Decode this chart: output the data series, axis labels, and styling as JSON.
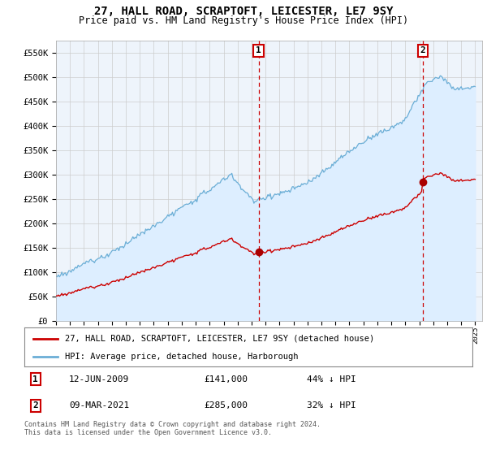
{
  "title": "27, HALL ROAD, SCRAPTOFT, LEICESTER, LE7 9SY",
  "subtitle": "Price paid vs. HM Land Registry's House Price Index (HPI)",
  "ylim": [
    0,
    575000
  ],
  "yticks": [
    0,
    50000,
    100000,
    150000,
    200000,
    250000,
    300000,
    350000,
    400000,
    450000,
    500000,
    550000
  ],
  "ytick_labels": [
    "£0",
    "£50K",
    "£100K",
    "£150K",
    "£200K",
    "£250K",
    "£300K",
    "£350K",
    "£400K",
    "£450K",
    "£500K",
    "£550K"
  ],
  "hpi_color": "#6baed6",
  "hpi_fill_color": "#ddeeff",
  "price_color": "#cc0000",
  "marker_color": "#aa0000",
  "vline_color": "#cc0000",
  "annotation_box_color": "#cc0000",
  "background_color": "#ffffff",
  "chart_bg_color": "#eef4fb",
  "grid_color": "#cccccc",
  "legend_label_price": "27, HALL ROAD, SCRAPTOFT, LEICESTER, LE7 9SY (detached house)",
  "legend_label_hpi": "HPI: Average price, detached house, Harborough",
  "purchase1_date_label": "12-JUN-2009",
  "purchase1_price": 141000,
  "purchase1_label": "£141,000",
  "purchase1_note": "44% ↓ HPI",
  "purchase1_num": "1",
  "purchase2_date_label": "09-MAR-2021",
  "purchase2_price": 285000,
  "purchase2_label": "£285,000",
  "purchase2_note": "32% ↓ HPI",
  "purchase2_num": "2",
  "footer": "Contains HM Land Registry data © Crown copyright and database right 2024.\nThis data is licensed under the Open Government Licence v3.0."
}
